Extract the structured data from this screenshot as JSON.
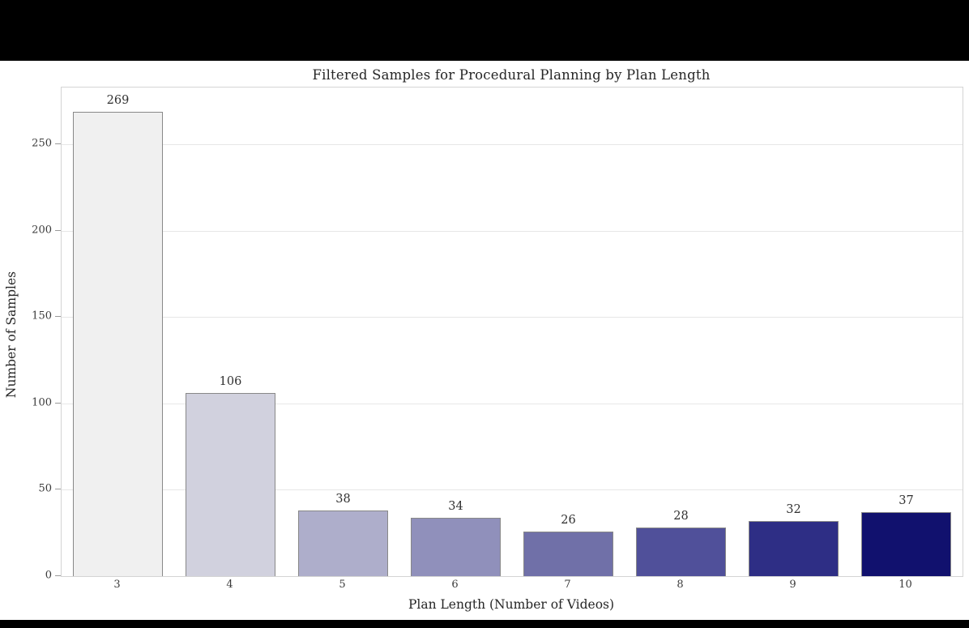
{
  "frame": {
    "letterbox_color": "#000000",
    "background_color": "#ffffff"
  },
  "chart_data": {
    "type": "bar",
    "title": "Filtered Samples for Procedural Planning by Plan Length",
    "xlabel": "Plan Length (Number of Videos)",
    "ylabel": "Number of Samples",
    "categories": [
      "3",
      "4",
      "5",
      "6",
      "7",
      "8",
      "9",
      "10"
    ],
    "values": [
      269,
      106,
      38,
      34,
      26,
      28,
      32,
      37
    ],
    "value_labels": [
      "269",
      "106",
      "38",
      "34",
      "26",
      "28",
      "32",
      "37"
    ],
    "bar_colors": [
      "#f0f0f0",
      "#d1d1de",
      "#aeaecb",
      "#9090bb",
      "#7070a8",
      "#50509a",
      "#2e2e85",
      "#11116e"
    ],
    "bar_edge_color": "#888888",
    "yticks": [
      0,
      50,
      100,
      150,
      200,
      250
    ],
    "ytick_labels": [
      "0",
      "50",
      "100",
      "150",
      "200",
      "250"
    ],
    "ylim": [
      0,
      283
    ],
    "grid": "horizontal",
    "grid_color": "#e7e7e7",
    "legend": "none",
    "text_color": "#262626"
  }
}
